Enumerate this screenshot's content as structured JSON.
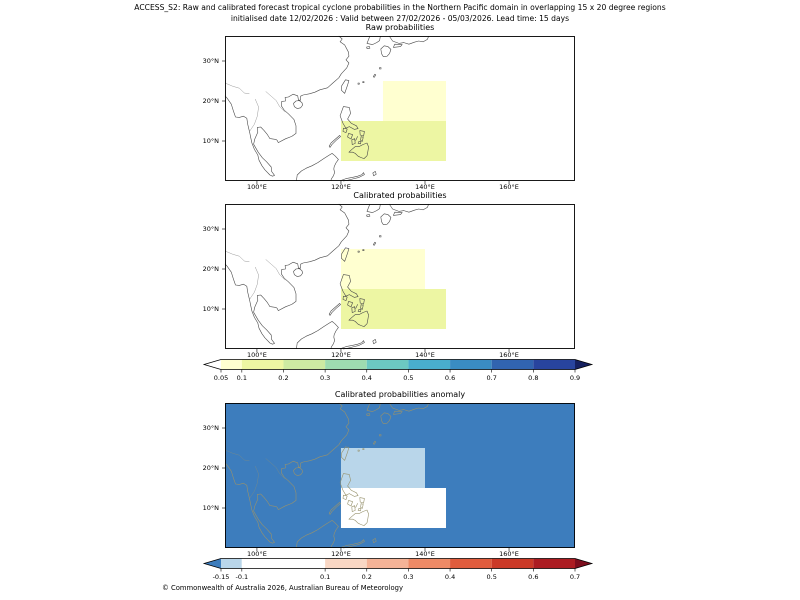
{
  "header": {
    "title_line1": "ACCESS_S2: Raw and calibrated forecast tropical cyclone probabilities in the Northern Pacific domain in overlapping 15 x 20 degree regions",
    "title_line2": "initialised date 12/02/2026 :  Valid between 27/02/2026 - 05/03/2026. Lead time: 15 days"
  },
  "footer": {
    "copyright": "© Commonwealth of Australia 2026, Australian Bureau of Meteorology"
  },
  "axes": {
    "lon_ticks": [
      {
        "label": "100°E",
        "lon": 100
      },
      {
        "label": "120°E",
        "lon": 120
      },
      {
        "label": "140°E",
        "lon": 140
      },
      {
        "label": "160°E",
        "lon": 160
      }
    ],
    "lat_ticks": [
      {
        "label": "30°N",
        "lat": 30
      },
      {
        "label": "20°N",
        "lat": 20
      },
      {
        "label": "10°N",
        "lat": 10
      }
    ]
  },
  "chart_data": {
    "type": "heatmap",
    "subtype": "geographic-probability-map",
    "map_extent": {
      "lon_min": 92.4,
      "lon_max": 175.7,
      "lat_min": 0,
      "lat_max": 36.25
    },
    "region_size": "15 x 20 degree overlapping regions",
    "panels": [
      {
        "id": "raw",
        "title": "Raw probabilities",
        "background_color": "#ffffff",
        "coast_color": "#4a4a4a",
        "regions": [
          {
            "lon_min": 130,
            "lon_max": 145,
            "lat_min": 15,
            "lat_max": 25,
            "value_range": "0.05-0.1",
            "color": "#ffffd0"
          },
          {
            "lon_min": 120,
            "lon_max": 145,
            "lat_min": 5,
            "lat_max": 15,
            "value_range": "0.1-0.2",
            "color": "#edf6a3"
          }
        ]
      },
      {
        "id": "calibrated",
        "title": "Calibrated probabilities",
        "background_color": "#ffffff",
        "coast_color": "#4a4a4a",
        "regions": [
          {
            "lon_min": 120,
            "lon_max": 140,
            "lat_min": 15,
            "lat_max": 25,
            "value_range": "0.05-0.1",
            "color": "#ffffd0"
          },
          {
            "lon_min": 120,
            "lon_max": 145,
            "lat_min": 5,
            "lat_max": 15,
            "value_range": "0.1-0.2",
            "color": "#edf6a3"
          }
        ]
      },
      {
        "id": "anomaly",
        "title": "Calibrated probabilities anomaly",
        "background_color": "#3d7dbd",
        "background_value": "< -0.15",
        "coast_color": "#97926d",
        "regions": [
          {
            "lon_min": 120,
            "lon_max": 140,
            "lat_min": 15,
            "lat_max": 25,
            "value_range": "-0.15 to -0.1",
            "color": "#b9d6ea"
          },
          {
            "lon_min": 120,
            "lon_max": 145,
            "lat_min": 5,
            "lat_max": 15,
            "value_range": "-0.1 to 0.1",
            "color": "#ffffff"
          }
        ]
      }
    ],
    "colorbars": [
      {
        "id": "probability",
        "ticks": [
          {
            "label": "0.05",
            "value": 0.05
          },
          {
            "label": "0.1",
            "value": 0.1
          },
          {
            "label": "0.2",
            "value": 0.2
          },
          {
            "label": "0.3",
            "value": 0.3
          },
          {
            "label": "0.4",
            "value": 0.4
          },
          {
            "label": "0.5",
            "value": 0.5
          },
          {
            "label": "0.6",
            "value": 0.6
          },
          {
            "label": "0.7",
            "value": 0.7
          },
          {
            "label": "0.8",
            "value": 0.8
          },
          {
            "label": "0.9",
            "value": 0.9
          }
        ],
        "segments": [
          {
            "from": null,
            "to": 0.05,
            "color": "#ffffff"
          },
          {
            "from": 0.05,
            "to": 0.1,
            "color": "#ffffd0"
          },
          {
            "from": 0.1,
            "to": 0.2,
            "color": "#edf6a3"
          },
          {
            "from": 0.2,
            "to": 0.3,
            "color": "#cdeaa2"
          },
          {
            "from": 0.3,
            "to": 0.4,
            "color": "#9edcb0"
          },
          {
            "from": 0.4,
            "to": 0.5,
            "color": "#6cc9c2"
          },
          {
            "from": 0.5,
            "to": 0.6,
            "color": "#49aecd"
          },
          {
            "from": 0.6,
            "to": 0.7,
            "color": "#3a8cc3"
          },
          {
            "from": 0.7,
            "to": 0.8,
            "color": "#3164b0"
          },
          {
            "from": 0.8,
            "to": 0.9,
            "color": "#28449e"
          },
          {
            "from": 0.9,
            "to": null,
            "color": "#15205f"
          }
        ]
      },
      {
        "id": "anomaly",
        "ticks": [
          {
            "label": "-0.15",
            "value": -0.15
          },
          {
            "label": "-0.1",
            "value": -0.1
          },
          {
            "label": "0.1",
            "value": 0.1
          },
          {
            "label": "0.2",
            "value": 0.2
          },
          {
            "label": "0.3",
            "value": 0.3
          },
          {
            "label": "0.4",
            "value": 0.4
          },
          {
            "label": "0.5",
            "value": 0.5
          },
          {
            "label": "0.6",
            "value": 0.6
          },
          {
            "label": "0.7",
            "value": 0.7
          }
        ],
        "segments": [
          {
            "from": null,
            "to": -0.15,
            "color": "#3d7dbd"
          },
          {
            "from": -0.15,
            "to": -0.1,
            "color": "#b9d6ea"
          },
          {
            "from": -0.1,
            "to": 0.1,
            "color": "#ffffff"
          },
          {
            "from": 0.1,
            "to": 0.2,
            "color": "#f9d7c4"
          },
          {
            "from": 0.2,
            "to": 0.3,
            "color": "#f5b397"
          },
          {
            "from": 0.3,
            "to": 0.4,
            "color": "#ee8a66"
          },
          {
            "from": 0.4,
            "to": 0.5,
            "color": "#e05c3d"
          },
          {
            "from": 0.5,
            "to": 0.6,
            "color": "#cb3927"
          },
          {
            "from": 0.6,
            "to": 0.7,
            "color": "#ac1c22"
          },
          {
            "from": 0.7,
            "to": null,
            "color": "#7c0d1d"
          }
        ]
      }
    ]
  }
}
